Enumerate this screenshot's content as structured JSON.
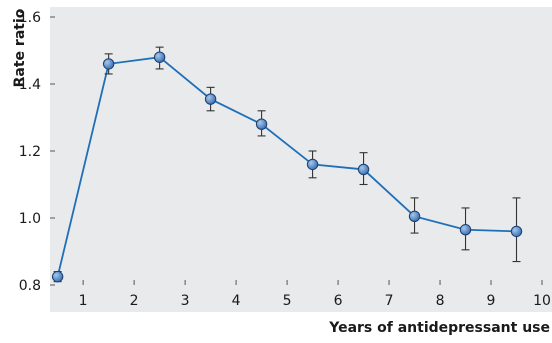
{
  "chart_data": {
    "type": "line",
    "ylabel": "Rate ratio",
    "xlabel": "Years of antidepressant use",
    "xlim": [
      0.35,
      10
    ],
    "ylim": [
      0.8,
      1.6
    ],
    "x_ticks": [
      1,
      2,
      3,
      4,
      5,
      6,
      7,
      8,
      9,
      10
    ],
    "x_tick_labels": [
      "1",
      "2",
      "3",
      "4",
      "5",
      "6",
      "7",
      "8",
      "9",
      "10"
    ],
    "y_ticks": [
      0.8,
      1.0,
      1.2,
      1.4,
      1.6
    ],
    "y_tick_labels": [
      "0.8",
      "1.0",
      "1.2",
      "1.4",
      "1.6"
    ],
    "grid": false,
    "colors": {
      "plot_background": "#e9eaec",
      "line": "#1f6fb8",
      "marker": "#3d74b8",
      "error_bar": "#333333",
      "text": "#1a1a1a"
    },
    "series": [
      {
        "points": [
          {
            "x": 0.5,
            "y": 0.825,
            "lower": 0.81,
            "upper": 0.84
          },
          {
            "x": 1.5,
            "y": 1.46,
            "lower": 1.43,
            "upper": 1.49
          },
          {
            "x": 2.5,
            "y": 1.48,
            "lower": 1.445,
            "upper": 1.51
          },
          {
            "x": 3.5,
            "y": 1.355,
            "lower": 1.32,
            "upper": 1.39
          },
          {
            "x": 4.5,
            "y": 1.28,
            "lower": 1.245,
            "upper": 1.32
          },
          {
            "x": 5.5,
            "y": 1.16,
            "lower": 1.12,
            "upper": 1.2
          },
          {
            "x": 6.5,
            "y": 1.145,
            "lower": 1.1,
            "upper": 1.195
          },
          {
            "x": 7.5,
            "y": 1.005,
            "lower": 0.955,
            "upper": 1.06
          },
          {
            "x": 8.5,
            "y": 0.965,
            "lower": 0.905,
            "upper": 1.03
          },
          {
            "x": 9.5,
            "y": 0.96,
            "lower": 0.87,
            "upper": 1.06
          }
        ]
      }
    ]
  }
}
